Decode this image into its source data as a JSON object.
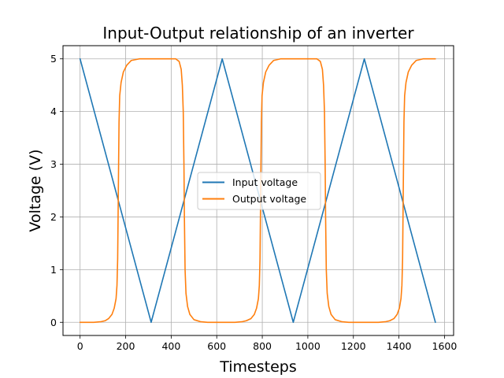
{
  "chart_data": {
    "type": "line",
    "title": "Input-Output relationship of an inverter",
    "xlabel": "Timesteps",
    "ylabel": "Voltage (V)",
    "xlim": [
      -75,
      1640
    ],
    "ylim": [
      -0.25,
      5.25
    ],
    "xticks": [
      0,
      200,
      400,
      600,
      800,
      1000,
      1200,
      1400,
      1600
    ],
    "yticks": [
      0,
      1,
      2,
      3,
      4,
      5
    ],
    "grid": true,
    "legend_position": "center",
    "colors": {
      "input": "#1f77b4",
      "output": "#ff7f0e"
    },
    "series": [
      {
        "name": "Input voltage",
        "points": [
          [
            0,
            5.0
          ],
          [
            312,
            0.0
          ],
          [
            624,
            5.0
          ],
          [
            936,
            0.0
          ],
          [
            1248,
            5.0
          ],
          [
            1560,
            0.0
          ]
        ]
      },
      {
        "name": "Output voltage",
        "points": [
          [
            0,
            0.0
          ],
          [
            60,
            0.0
          ],
          [
            90,
            0.01
          ],
          [
            110,
            0.03
          ],
          [
            125,
            0.07
          ],
          [
            140,
            0.15
          ],
          [
            150,
            0.27
          ],
          [
            158,
            0.45
          ],
          [
            162,
            0.7
          ],
          [
            165,
            1.2
          ],
          [
            168,
            2.5
          ],
          [
            171,
            3.8
          ],
          [
            174,
            4.3
          ],
          [
            180,
            4.55
          ],
          [
            190,
            4.75
          ],
          [
            205,
            4.88
          ],
          [
            225,
            4.97
          ],
          [
            260,
            5.0
          ],
          [
            420,
            5.0
          ],
          [
            435,
            4.95
          ],
          [
            444,
            4.8
          ],
          [
            449,
            4.5
          ],
          [
            453,
            4.0
          ],
          [
            456,
            3.0
          ],
          [
            458,
            2.0
          ],
          [
            461,
            1.0
          ],
          [
            465,
            0.55
          ],
          [
            472,
            0.3
          ],
          [
            482,
            0.15
          ],
          [
            500,
            0.05
          ],
          [
            530,
            0.01
          ],
          [
            560,
            0.0
          ],
          [
            680,
            0.0
          ],
          [
            710,
            0.01
          ],
          [
            730,
            0.03
          ],
          [
            750,
            0.07
          ],
          [
            765,
            0.15
          ],
          [
            775,
            0.27
          ],
          [
            783,
            0.45
          ],
          [
            787,
            0.7
          ],
          [
            790,
            1.2
          ],
          [
            793,
            2.5
          ],
          [
            796,
            3.8
          ],
          [
            799,
            4.3
          ],
          [
            805,
            4.55
          ],
          [
            815,
            4.75
          ],
          [
            830,
            4.88
          ],
          [
            850,
            4.97
          ],
          [
            880,
            5.0
          ],
          [
            1040,
            5.0
          ],
          [
            1055,
            4.95
          ],
          [
            1064,
            4.8
          ],
          [
            1069,
            4.5
          ],
          [
            1073,
            4.0
          ],
          [
            1076,
            3.0
          ],
          [
            1078,
            2.0
          ],
          [
            1081,
            1.0
          ],
          [
            1085,
            0.55
          ],
          [
            1092,
            0.3
          ],
          [
            1102,
            0.15
          ],
          [
            1120,
            0.05
          ],
          [
            1150,
            0.01
          ],
          [
            1180,
            0.0
          ],
          [
            1310,
            0.0
          ],
          [
            1340,
            0.01
          ],
          [
            1360,
            0.03
          ],
          [
            1378,
            0.07
          ],
          [
            1392,
            0.15
          ],
          [
            1402,
            0.27
          ],
          [
            1409,
            0.45
          ],
          [
            1413,
            0.7
          ],
          [
            1416,
            1.2
          ],
          [
            1419,
            2.5
          ],
          [
            1422,
            3.8
          ],
          [
            1425,
            4.3
          ],
          [
            1431,
            4.55
          ],
          [
            1441,
            4.75
          ],
          [
            1456,
            4.88
          ],
          [
            1476,
            4.97
          ],
          [
            1506,
            5.0
          ],
          [
            1560,
            5.0
          ]
        ]
      }
    ]
  }
}
